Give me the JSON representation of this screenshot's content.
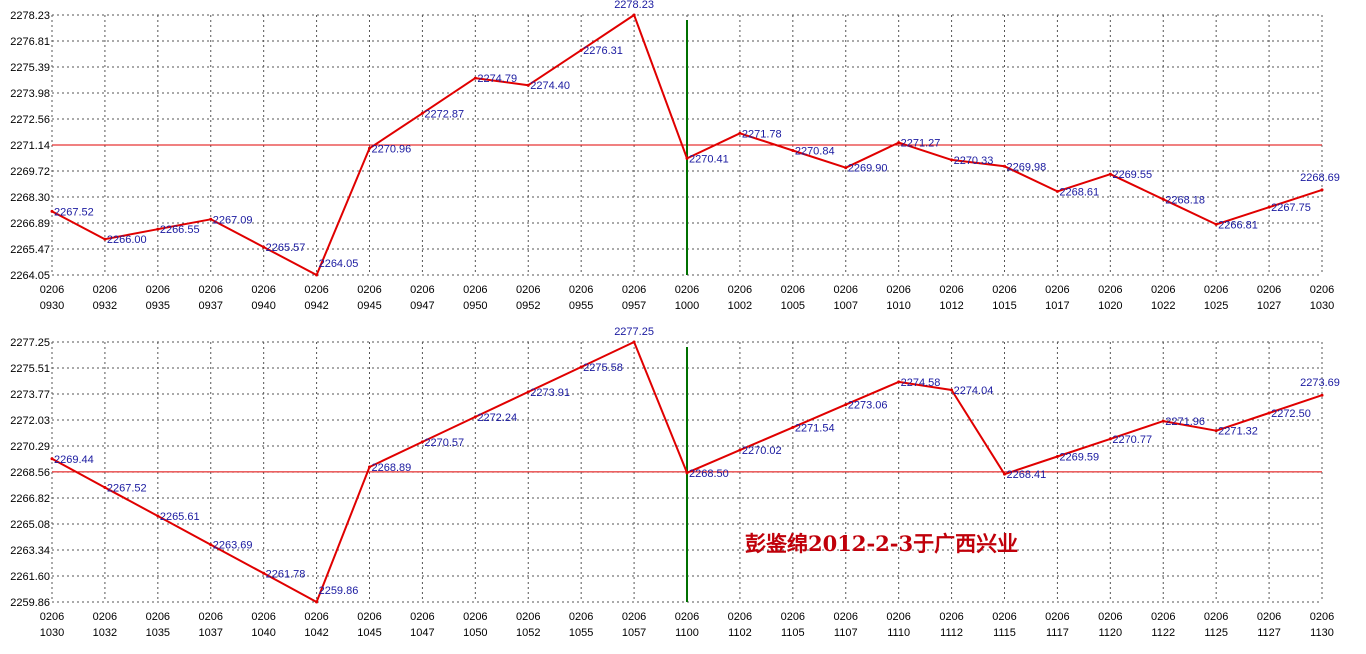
{
  "watermark_text": "彭鉴绵2012-2-3于广西兴业",
  "colors": {
    "line": "#e00000",
    "ref_line": "#e00000",
    "divider": "#007000",
    "grid": "#555555",
    "label": "#1a1aa0"
  },
  "chart_data": [
    {
      "type": "line",
      "title": "",
      "xlabel": "",
      "ylabel": "",
      "grid": true,
      "ylim": [
        2264.05,
        2278.23
      ],
      "yticks": [
        "2278.23",
        "2276.81",
        "2275.39",
        "2273.98",
        "2272.56",
        "2271.14",
        "2269.72",
        "2268.30",
        "2266.89",
        "2265.47",
        "2264.05"
      ],
      "reference_value": 2271.14,
      "divider_at": "0206\n1000",
      "categories": [
        "0206\n0930",
        "0206\n0932",
        "0206\n0935",
        "0206\n0937",
        "0206\n0940",
        "0206\n0942",
        "0206\n0945",
        "0206\n0947",
        "0206\n0950",
        "0206\n0952",
        "0206\n0955",
        "0206\n0957",
        "0206\n1000",
        "0206\n1002",
        "0206\n1005",
        "0206\n1007",
        "0206\n1010",
        "0206\n1012",
        "0206\n1015",
        "0206\n1017",
        "0206\n1020",
        "0206\n1022",
        "0206\n1025",
        "0206\n1027",
        "0206\n1030"
      ],
      "values": [
        2267.52,
        2266.0,
        2266.55,
        2267.09,
        2265.57,
        2264.05,
        2270.96,
        2272.87,
        2274.79,
        2274.4,
        2276.31,
        2278.23,
        2270.41,
        2271.78,
        2270.84,
        2269.9,
        2271.27,
        2270.33,
        2269.98,
        2268.61,
        2269.55,
        2268.18,
        2266.81,
        2267.75,
        2268.69
      ]
    },
    {
      "type": "line",
      "title": "",
      "xlabel": "",
      "ylabel": "",
      "grid": true,
      "ylim": [
        2259.86,
        2277.25
      ],
      "yticks": [
        "2277.25",
        "2275.51",
        "2273.77",
        "2272.03",
        "2270.29",
        "2268.56",
        "2266.82",
        "2265.08",
        "2263.34",
        "2261.60",
        "2259.86"
      ],
      "reference_value": 2268.56,
      "divider_at": "0206\n1100",
      "categories": [
        "0206\n1030",
        "0206\n1032",
        "0206\n1035",
        "0206\n1037",
        "0206\n1040",
        "0206\n1042",
        "0206\n1045",
        "0206\n1047",
        "0206\n1050",
        "0206\n1052",
        "0206\n1055",
        "0206\n1057",
        "0206\n1100",
        "0206\n1102",
        "0206\n1105",
        "0206\n1107",
        "0206\n1110",
        "0206\n1112",
        "0206\n1115",
        "0206\n1117",
        "0206\n1120",
        "0206\n1122",
        "0206\n1125",
        "0206\n1127",
        "0206\n1130"
      ],
      "values": [
        2269.44,
        2267.52,
        2265.61,
        2263.69,
        2261.78,
        2259.86,
        2268.89,
        2270.57,
        2272.24,
        2273.91,
        2275.58,
        2277.25,
        2268.5,
        2270.02,
        2271.54,
        2273.06,
        2274.58,
        2274.04,
        2268.41,
        2269.59,
        2270.77,
        2271.96,
        2271.32,
        2272.5,
        2273.69
      ]
    }
  ]
}
